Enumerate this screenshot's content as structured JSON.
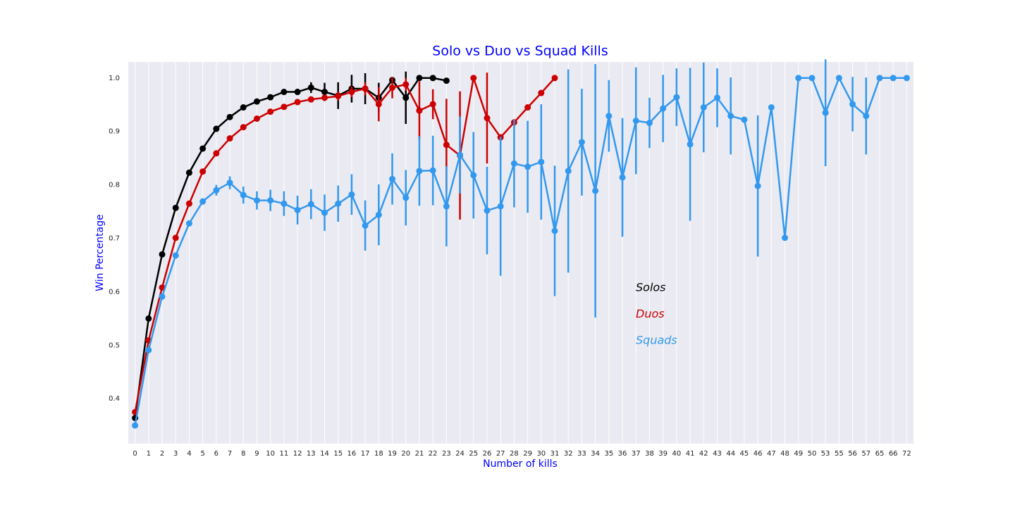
{
  "chart_data": {
    "type": "pointplot",
    "title": "Solo vs Duo vs Squad Kills",
    "xlabel": "Number of kills",
    "ylabel": "Win Percentage",
    "categories": [
      "0",
      "1",
      "2",
      "3",
      "4",
      "5",
      "6",
      "7",
      "8",
      "9",
      "10",
      "11",
      "12",
      "13",
      "14",
      "15",
      "16",
      "17",
      "18",
      "19",
      "20",
      "21",
      "22",
      "23",
      "24",
      "25",
      "26",
      "27",
      "28",
      "29",
      "30",
      "31",
      "32",
      "33",
      "34",
      "35",
      "36",
      "37",
      "38",
      "39",
      "40",
      "41",
      "42",
      "43",
      "44",
      "45",
      "46",
      "47",
      "48",
      "49",
      "50",
      "53",
      "55",
      "56",
      "57",
      "65",
      "66",
      "72"
    ],
    "ylim": [
      0.316,
      1.03
    ],
    "yticks": [
      0.4,
      0.5,
      0.6,
      0.7,
      0.8,
      0.9,
      {
        "value": 1,
        "label": "1.0"
      }
    ],
    "grid": "x",
    "series": [
      {
        "name": "Solos",
        "color": "#000000",
        "values": [
          0.364,
          0.55,
          0.67,
          0.757,
          0.823,
          0.868,
          0.905,
          0.927,
          0.945,
          0.956,
          0.964,
          0.974,
          0.974,
          0.982,
          0.974,
          0.967,
          0.98,
          0.98,
          0.963,
          0.996,
          0.963,
          1,
          1,
          0.995,
          null,
          null,
          null,
          null,
          null,
          null,
          null,
          null,
          null,
          null,
          null,
          null,
          null,
          null,
          null,
          null,
          null,
          null,
          null,
          null,
          null,
          null,
          null,
          null,
          null,
          null,
          null,
          null,
          null,
          null,
          null,
          null,
          null,
          null
        ],
        "errors": [
          0.003,
          0.003,
          0.002,
          0.002,
          0.002,
          0.002,
          0.002,
          0.002,
          0.002,
          0.002,
          0.003,
          0.004,
          0.006,
          0.01,
          0.017,
          0.025,
          0.026,
          0.029,
          0.028,
          0.005,
          0.049,
          0,
          0,
          0,
          null,
          null,
          null,
          null,
          null,
          null,
          null,
          null,
          null,
          null,
          null,
          null,
          null,
          null,
          null,
          null,
          null,
          null,
          null,
          null,
          null,
          null,
          null,
          null,
          null,
          null,
          null,
          null,
          null,
          null,
          null,
          null,
          null,
          null
        ]
      },
      {
        "name": "Duos",
        "color": "#cc0000",
        "values": [
          0.375,
          0.509,
          0.608,
          0.701,
          0.765,
          0.825,
          0.859,
          0.887,
          0.908,
          0.924,
          0.937,
          0.946,
          0.955,
          0.96,
          0.963,
          0.966,
          0.974,
          0.98,
          0.951,
          0.982,
          0.988,
          0.939,
          0.951,
          0.875,
          0.855,
          1,
          0.925,
          0.889,
          0.917,
          0.945,
          0.972,
          1,
          null,
          null,
          null,
          null,
          null,
          null,
          null,
          null,
          null,
          null,
          null,
          null,
          null,
          null,
          null,
          null,
          null,
          null,
          null,
          null,
          null,
          null,
          null,
          null,
          null,
          null
        ],
        "errors": [
          0.003,
          0.003,
          0.002,
          0.002,
          0.002,
          0.002,
          0.002,
          0.002,
          0.002,
          0.002,
          0.003,
          0.003,
          0.004,
          0.005,
          0.006,
          0.008,
          0.01,
          0.012,
          0.032,
          0.02,
          0.012,
          0.055,
          0.028,
          0.086,
          0.12,
          0,
          0.085,
          0,
          0,
          0,
          0,
          0,
          null,
          null,
          null,
          null,
          null,
          null,
          null,
          null,
          null,
          null,
          null,
          null,
          null,
          null,
          null,
          null,
          null,
          null,
          null,
          null,
          null,
          null,
          null,
          null,
          null,
          null
        ]
      },
      {
        "name": "Squads",
        "color": "#3399ee",
        "values": [
          0.35,
          0.491,
          0.591,
          0.668,
          0.728,
          0.769,
          0.79,
          0.804,
          0.781,
          0.771,
          0.771,
          0.765,
          0.753,
          0.764,
          0.748,
          0.765,
          0.782,
          0.724,
          0.744,
          0.811,
          0.776,
          0.826,
          0.827,
          0.76,
          0.856,
          0.818,
          0.752,
          0.76,
          0.84,
          0.834,
          0.843,
          0.714,
          0.826,
          0.88,
          0.789,
          0.929,
          0.814,
          0.92,
          0.916,
          0.943,
          0.964,
          0.876,
          0.945,
          0.963,
          0.929,
          0.922,
          0.798,
          0.945,
          0.701,
          1,
          1,
          0.935,
          1,
          0.951,
          0.929,
          1,
          1,
          1
        ],
        "errors": [
          0.003,
          0.003,
          0.003,
          0.003,
          0.004,
          0.006,
          0.01,
          0.012,
          0.016,
          0.017,
          0.02,
          0.023,
          0.027,
          0.028,
          0.034,
          0.034,
          0.038,
          0.047,
          0.057,
          0.048,
          0.052,
          0.065,
          0.065,
          0.075,
          0.072,
          0.081,
          0.082,
          0.13,
          0.082,
          0.086,
          0.108,
          0.122,
          0.19,
          0.1,
          0.237,
          0.067,
          0.111,
          0.1,
          0.047,
          0.063,
          0.054,
          0.143,
          0.084,
          0.055,
          0.072,
          0,
          0.132,
          0,
          0,
          0,
          0,
          0.1,
          0,
          0.051,
          0.072,
          0,
          0,
          0
        ]
      }
    ]
  }
}
